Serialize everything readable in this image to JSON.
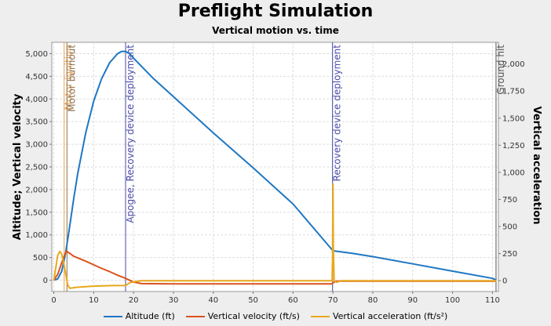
{
  "title": "Preflight Simulation",
  "subtitle": "Vertical motion vs. time",
  "chart_data": {
    "type": "line",
    "xlim": [
      -0.5,
      111.5
    ],
    "xticks": [
      0,
      10,
      20,
      30,
      40,
      50,
      60,
      70,
      80,
      90,
      100,
      110
    ],
    "y_left": {
      "label": "Altitude; Vertical velocity",
      "lim": [
        -250,
        5250
      ],
      "ticks": [
        0,
        500,
        1000,
        1500,
        2000,
        2500,
        3000,
        3500,
        4000,
        4500,
        5000
      ],
      "tick_labels": [
        "0",
        "500",
        "1,000",
        "1,500",
        "2,000",
        "2,500",
        "3,000",
        "3,500",
        "4,000",
        "4,500",
        "5,000"
      ]
    },
    "y_right": {
      "label": "Vertical acceleration",
      "lim": [
        -100,
        2200
      ],
      "ticks": [
        0,
        250,
        500,
        750,
        1000,
        1250,
        1500,
        1750,
        2000
      ],
      "tick_labels": [
        "0",
        "250",
        "500",
        "750",
        "1,000",
        "1,250",
        "1,500",
        "1,750",
        "2,000"
      ]
    },
    "grid": true,
    "legend_placement": "bottom",
    "series": [
      {
        "name": "Altitude (ft)",
        "axis": "left",
        "color": "#1f77c4",
        "x": [
          0,
          1,
          2,
          3,
          4,
          5,
          6,
          8,
          10,
          12,
          14,
          16,
          17,
          18,
          19,
          20,
          25,
          30,
          40,
          50,
          60,
          70,
          75,
          80,
          90,
          100,
          110,
          111
        ],
        "y": [
          0,
          30,
          200,
          620,
          1200,
          1800,
          2350,
          3250,
          3950,
          4450,
          4800,
          5000,
          5050,
          5050,
          5000,
          4900,
          4450,
          4050,
          3250,
          2480,
          1680,
          650,
          590,
          520,
          360,
          200,
          40,
          0
        ]
      },
      {
        "name": "Vertical velocity (ft/s)",
        "axis": "left",
        "color": "#d9541e",
        "x": [
          0,
          1,
          2,
          3,
          3.2,
          5,
          8,
          10,
          12,
          14,
          16,
          18,
          20,
          22,
          30,
          50,
          69.8,
          70,
          70.3,
          71,
          90,
          111
        ],
        "y": [
          0,
          130,
          390,
          620,
          640,
          530,
          420,
          340,
          260,
          190,
          110,
          40,
          -40,
          -75,
          -80,
          -80,
          -80,
          -60,
          -40,
          -20,
          -20,
          -20
        ]
      },
      {
        "name": "Vertical acceleration (ft/s²)",
        "axis": "right",
        "color": "#e8a81c",
        "x": [
          0,
          0.5,
          1,
          1.5,
          2,
          2.5,
          3,
          3.5,
          4,
          6,
          10,
          15,
          18,
          19,
          20,
          22,
          25,
          40,
          60,
          69.8,
          69.9,
          70,
          70.1,
          70.3,
          71,
          72,
          90,
          111
        ],
        "y": [
          0,
          120,
          235,
          270,
          245,
          160,
          60,
          -40,
          -70,
          -60,
          -50,
          -45,
          -45,
          -20,
          -10,
          0,
          0,
          0,
          0,
          0,
          200,
          890,
          300,
          0,
          -15,
          0,
          0,
          0
        ]
      }
    ],
    "events": [
      {
        "x": 2.6,
        "label": "Motor ignition",
        "color": "#e8a050"
      },
      {
        "x": 3.3,
        "label": "Motor burnout",
        "color": "#8a7050"
      },
      {
        "x": 18,
        "label": "Apogee, Recovery device deployment",
        "color": "#4a4aa8"
      },
      {
        "x": 69.9,
        "label": "Recovery device deployment",
        "color": "#4a4aa8"
      },
      {
        "x": 110.9,
        "label": "Ground hit",
        "color": "#555555"
      }
    ]
  }
}
